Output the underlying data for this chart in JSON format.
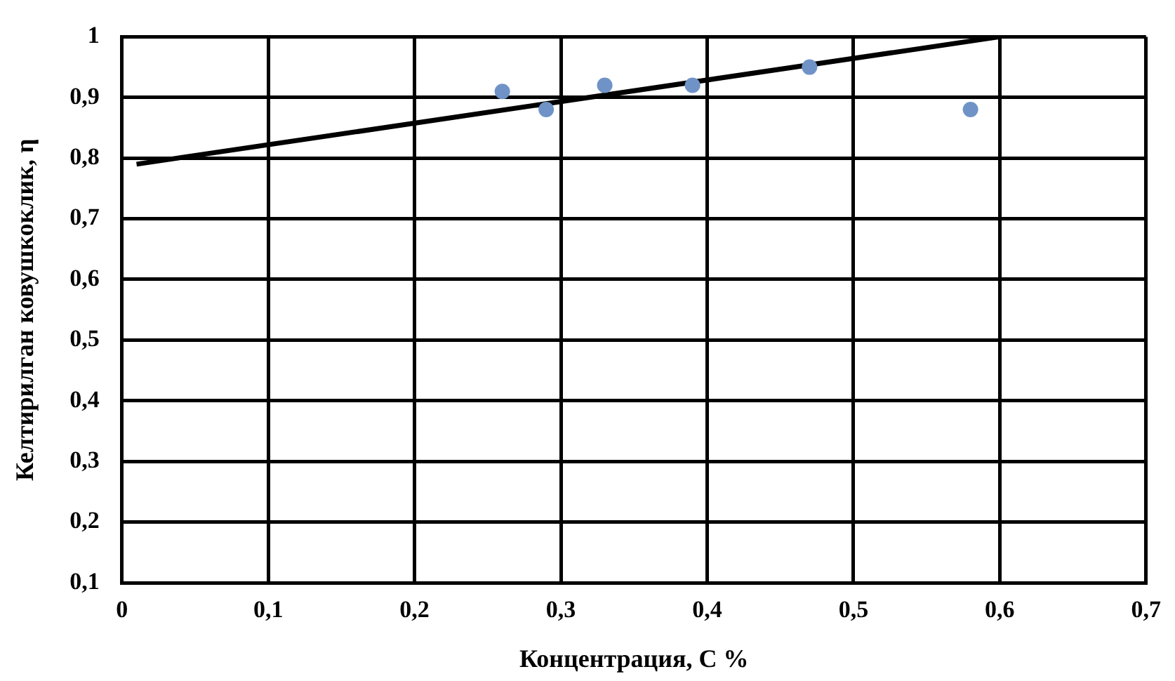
{
  "chart_data": {
    "type": "scatter",
    "xlabel": "Концентрация, С %",
    "ylabel": "Келтирилган ковушкоклик, η",
    "xlim": [
      0,
      0.7
    ],
    "xticks": [
      0,
      {
        "value": 0.1,
        "label": "0,1"
      },
      {
        "value": 0.2,
        "label": "0,2"
      },
      {
        "value": 0.3,
        "label": "0,3"
      },
      {
        "value": 0.4,
        "label": "0,4"
      },
      {
        "value": 0.5,
        "label": "0,5"
      },
      {
        "value": 0.6,
        "label": "0,6"
      },
      {
        "value": 0.7,
        "label": "0,7"
      }
    ],
    "ylim": [
      0.1,
      1
    ],
    "yticks": [
      {
        "value": 0.1,
        "label": "0,1"
      },
      {
        "value": 0.2,
        "label": "0,2"
      },
      {
        "value": 0.3,
        "label": "0,3"
      },
      {
        "value": 0.4,
        "label": "0,4"
      },
      {
        "value": 0.5,
        "label": "0,5"
      },
      {
        "value": 0.6,
        "label": "0,6"
      },
      {
        "value": 0.7,
        "label": "0,7"
      },
      {
        "value": 0.8,
        "label": "0,8"
      },
      {
        "value": 0.9,
        "label": "0,9"
      },
      1
    ],
    "grid": true,
    "legend": false,
    "marker": "circle",
    "series": [
      {
        "type": "scatter",
        "color": "#6f93c6",
        "x": [
          0.26,
          0.29,
          0.33,
          0.39,
          0.47,
          0.58
        ],
        "values": [
          0.91,
          0.88,
          0.92,
          0.92,
          0.95,
          0.88
        ]
      },
      {
        "type": "line",
        "color": "#000000",
        "x": [
          0.01,
          0.6
        ],
        "values": [
          0.79,
          1.0
        ],
        "marker": "none"
      }
    ]
  }
}
